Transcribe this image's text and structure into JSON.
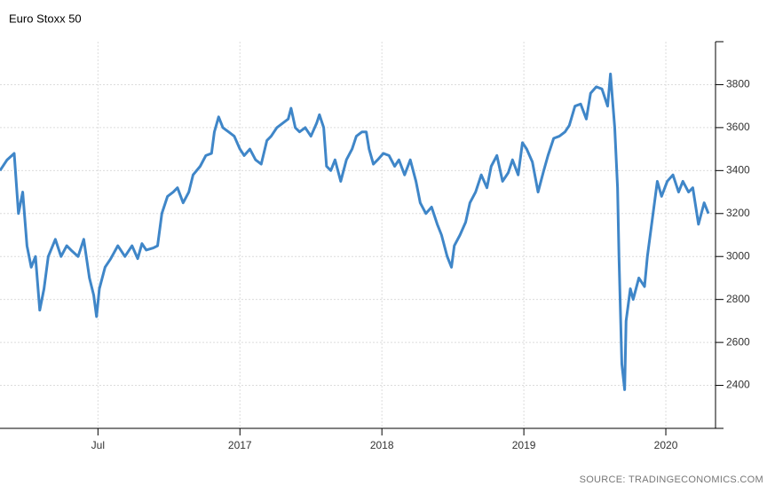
{
  "chart_data": {
    "type": "line",
    "title": "Euro Stoxx 50",
    "source": "SOURCE: TRADINGECONOMICS.COM",
    "xlim": [
      2015.31,
      2020.35
    ],
    "xticks": [
      {
        "value": 2016,
        "label": "Jul"
      },
      2017,
      2018,
      2019,
      2020
    ],
    "ylim": [
      2200,
      4000
    ],
    "yticks": [
      2400,
      2600,
      2800,
      3000,
      3200,
      3400,
      3600,
      3800
    ],
    "grid": true,
    "y_axis_side": "right",
    "series": [
      {
        "name": "Euro Stoxx 50",
        "color": "#3f86c8",
        "x": [
          2015.31,
          2015.36,
          2015.41,
          2015.44,
          2015.47,
          2015.5,
          2015.53,
          2015.56,
          2015.59,
          2015.62,
          2015.65,
          2015.7,
          2015.74,
          2015.78,
          2015.81,
          2015.86,
          2015.9,
          2015.94,
          2015.97,
          2015.99,
          2016.01,
          2016.05,
          2016.09,
          2016.14,
          2016.19,
          2016.24,
          2016.28,
          2016.31,
          2016.34,
          2016.39,
          2016.42,
          2016.45,
          2016.49,
          2016.53,
          2016.56,
          2016.6,
          2016.64,
          2016.67,
          2016.72,
          2016.76,
          2016.8,
          2016.82,
          2016.85,
          2016.88,
          2016.92,
          2016.96,
          2017.0,
          2017.03,
          2017.07,
          2017.11,
          2017.15,
          2017.19,
          2017.22,
          2017.26,
          2017.3,
          2017.34,
          2017.36,
          2017.39,
          2017.42,
          2017.46,
          2017.5,
          2017.54,
          2017.56,
          2017.59,
          2017.61,
          2017.64,
          2017.67,
          2017.71,
          2017.75,
          2017.79,
          2017.82,
          2017.86,
          2017.89,
          2017.91,
          2017.94,
          2017.97,
          2018.01,
          2018.05,
          2018.09,
          2018.12,
          2018.16,
          2018.2,
          2018.24,
          2018.27,
          2018.31,
          2018.35,
          2018.39,
          2018.42,
          2018.46,
          2018.49,
          2018.51,
          2018.55,
          2018.59,
          2018.62,
          2018.66,
          2018.7,
          2018.74,
          2018.77,
          2018.81,
          2018.85,
          2018.89,
          2018.92,
          2018.96,
          2018.99,
          2019.02,
          2019.06,
          2019.1,
          2019.14,
          2019.17,
          2019.21,
          2019.25,
          2019.29,
          2019.32,
          2019.36,
          2019.4,
          2019.44,
          2019.47,
          2019.51,
          2019.55,
          2019.59,
          2019.61,
          2019.64,
          2019.66,
          2019.67,
          2019.69,
          2019.71,
          2019.72,
          2019.75,
          2019.77,
          2019.81,
          2019.85,
          2019.87,
          2019.9,
          2019.94,
          2019.97,
          2020.01,
          2020.05,
          2020.09,
          2020.12,
          2020.16,
          2020.19,
          2020.23,
          2020.27,
          2020.3
        ],
        "values": [
          3400,
          3450,
          3480,
          3200,
          3300,
          3050,
          2950,
          3000,
          2750,
          2850,
          3000,
          3080,
          3000,
          3050,
          3030,
          3000,
          3080,
          2900,
          2820,
          2720,
          2850,
          2950,
          2990,
          3050,
          3000,
          3050,
          2990,
          3060,
          3030,
          3040,
          3050,
          3200,
          3280,
          3300,
          3320,
          3250,
          3300,
          3380,
          3420,
          3470,
          3480,
          3580,
          3650,
          3600,
          3580,
          3560,
          3500,
          3470,
          3500,
          3450,
          3430,
          3540,
          3560,
          3600,
          3620,
          3640,
          3690,
          3600,
          3580,
          3600,
          3560,
          3620,
          3660,
          3600,
          3420,
          3400,
          3450,
          3350,
          3450,
          3500,
          3560,
          3580,
          3580,
          3500,
          3430,
          3450,
          3480,
          3470,
          3420,
          3450,
          3380,
          3450,
          3350,
          3250,
          3200,
          3230,
          3150,
          3100,
          3000,
          2950,
          3050,
          3100,
          3160,
          3250,
          3300,
          3380,
          3320,
          3420,
          3470,
          3350,
          3390,
          3450,
          3380,
          3530,
          3500,
          3440,
          3300,
          3400,
          3470,
          3550,
          3560,
          3580,
          3610,
          3700,
          3710,
          3640,
          3760,
          3790,
          3780,
          3700,
          3850,
          3600,
          3320,
          3000,
          2500,
          2380,
          2700,
          2850,
          2800,
          2900,
          2860,
          3000,
          3150,
          3350,
          3280,
          3350,
          3380,
          3300,
          3350,
          3300,
          3320,
          3150,
          3250,
          3200
        ]
      }
    ]
  }
}
